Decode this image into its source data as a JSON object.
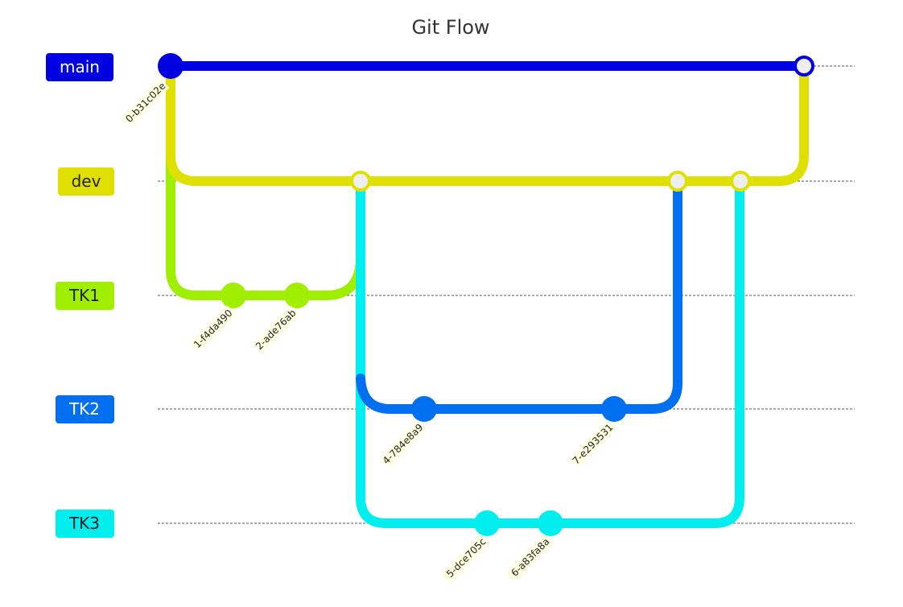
{
  "title": "Git Flow",
  "branches": [
    {
      "id": "main",
      "label": "main",
      "color": "#0000e0",
      "text_color": "#ffffff"
    },
    {
      "id": "dev",
      "label": "dev",
      "color": "#e0e000",
      "text_color": "#222222"
    },
    {
      "id": "TK1",
      "label": "TK1",
      "color": "#a0ee00",
      "text_color": "#222222"
    },
    {
      "id": "TK2",
      "label": "TK2",
      "color": "#0070f0",
      "text_color": "#ffffff"
    },
    {
      "id": "TK3",
      "label": "TK3",
      "color": "#00eeee",
      "text_color": "#222222"
    }
  ],
  "commits": [
    {
      "label": "0-b31c02e",
      "branch": "main",
      "type": "normal"
    },
    {
      "label": "1-f4da490",
      "branch": "TK1",
      "type": "normal"
    },
    {
      "label": "2-ade76ab",
      "branch": "TK1",
      "type": "normal"
    },
    {
      "label": "",
      "branch": "dev",
      "type": "merge"
    },
    {
      "label": "4-784e8a9",
      "branch": "TK2",
      "type": "normal"
    },
    {
      "label": "5-dce705c",
      "branch": "TK3",
      "type": "normal"
    },
    {
      "label": "6-a83fa8a",
      "branch": "TK3",
      "type": "normal"
    },
    {
      "label": "7-e293531",
      "branch": "TK2",
      "type": "normal"
    },
    {
      "label": "",
      "branch": "dev",
      "type": "merge"
    },
    {
      "label": "",
      "branch": "dev",
      "type": "merge"
    },
    {
      "label": "",
      "branch": "main",
      "type": "merge"
    }
  ]
}
